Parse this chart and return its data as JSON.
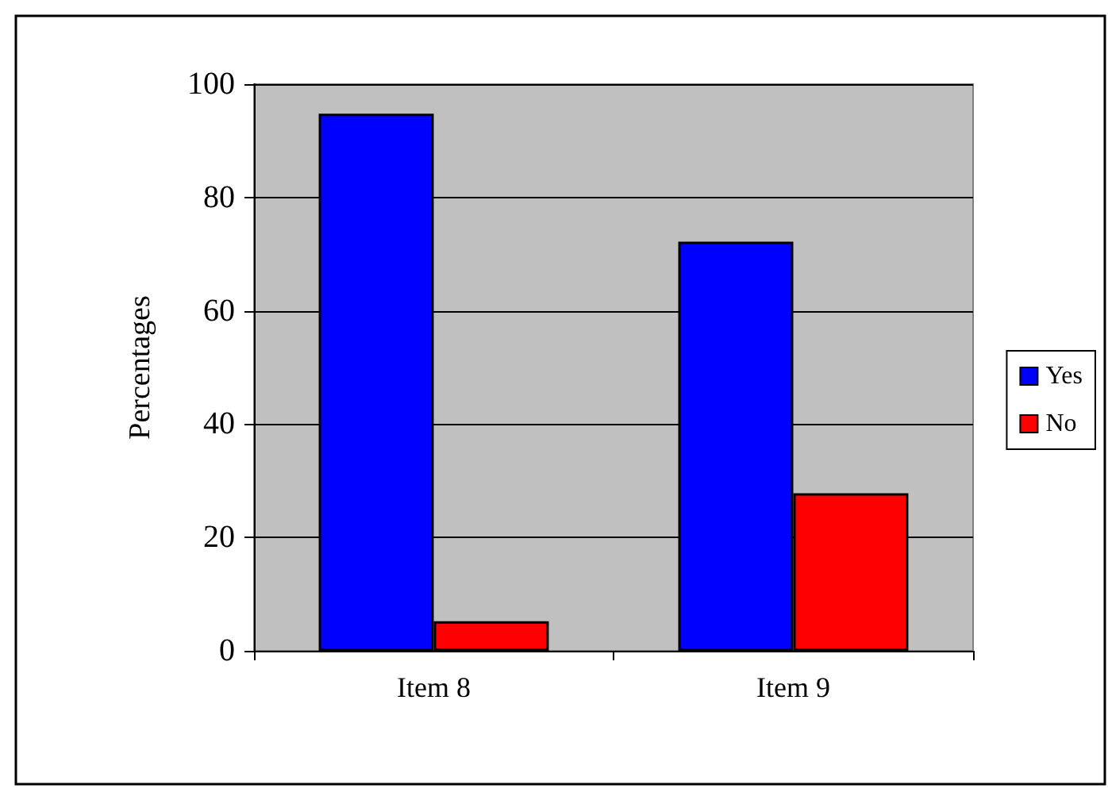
{
  "chart_data": {
    "type": "bar",
    "ylabel": "Percentages",
    "categories": [
      "Item 8",
      "Item 9"
    ],
    "series": [
      {
        "name": "Yes",
        "color": "#0000ff",
        "values": [
          94.8,
          72.2
        ]
      },
      {
        "name": "No",
        "color": "#ff0000",
        "values": [
          5.2,
          27.8
        ]
      }
    ],
    "ylim": [
      0,
      100
    ],
    "yticks": [
      0,
      20,
      40,
      60,
      80,
      100
    ],
    "grid": "y",
    "legend": "right"
  }
}
